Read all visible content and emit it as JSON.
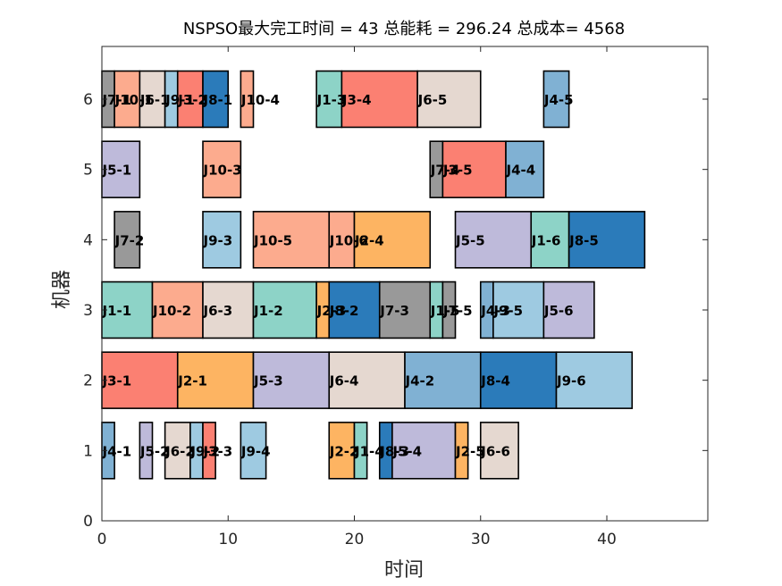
{
  "chart_data": {
    "type": "gantt",
    "title": "NSPSO最大完工时间 = 43 总能耗 = 296.24 总成本= 4568",
    "xlabel": "时间",
    "ylabel": "机器",
    "xlim": [
      0,
      48
    ],
    "ylim": [
      0,
      6.75
    ],
    "xticks": [
      "0",
      "10",
      "20",
      "30",
      "40"
    ],
    "yticks": [
      "0",
      "1",
      "2",
      "3",
      "4",
      "5",
      "6"
    ],
    "bar_height": 0.8,
    "job_colors": {
      "1": "#8dd3c7",
      "2": "#fdb462",
      "3": "#fb8072",
      "4": "#80b1d3",
      "5": "#bebada",
      "6": "#e5d8d0",
      "7": "#999999",
      "8": "#2b7bba",
      "9": "#9ecae1",
      "10": "#fcab8e"
    },
    "tasks": [
      {
        "machine": 6,
        "job": 7,
        "label": "J7-1",
        "start": 0,
        "end": 1
      },
      {
        "machine": 6,
        "job": 10,
        "label": "J10-1",
        "start": 1,
        "end": 3
      },
      {
        "machine": 6,
        "job": 6,
        "label": "J6-1",
        "start": 3,
        "end": 5
      },
      {
        "machine": 6,
        "job": 9,
        "label": "J9-1",
        "start": 5,
        "end": 6
      },
      {
        "machine": 6,
        "job": 3,
        "label": "J3-2",
        "start": 6,
        "end": 8
      },
      {
        "machine": 6,
        "job": 8,
        "label": "J8-1",
        "start": 8,
        "end": 10
      },
      {
        "machine": 6,
        "job": 10,
        "label": "J10-4",
        "start": 11,
        "end": 12
      },
      {
        "machine": 6,
        "job": 1,
        "label": "J1-3",
        "start": 17,
        "end": 19
      },
      {
        "machine": 6,
        "job": 3,
        "label": "J3-4",
        "start": 19,
        "end": 25
      },
      {
        "machine": 6,
        "job": 6,
        "label": "J6-5",
        "start": 25,
        "end": 30
      },
      {
        "machine": 6,
        "job": 4,
        "label": "J4-5",
        "start": 35,
        "end": 37
      },
      {
        "machine": 5,
        "job": 5,
        "label": "J5-1",
        "start": 0,
        "end": 3
      },
      {
        "machine": 5,
        "job": 10,
        "label": "J10-3",
        "start": 8,
        "end": 11
      },
      {
        "machine": 5,
        "job": 7,
        "label": "J7-4",
        "start": 26,
        "end": 27
      },
      {
        "machine": 5,
        "job": 3,
        "label": "J3-5",
        "start": 27,
        "end": 32
      },
      {
        "machine": 5,
        "job": 4,
        "label": "J4-4",
        "start": 32,
        "end": 35
      },
      {
        "machine": 4,
        "job": 7,
        "label": "J7-2",
        "start": 1,
        "end": 3
      },
      {
        "machine": 4,
        "job": 9,
        "label": "J9-3",
        "start": 8,
        "end": 11
      },
      {
        "machine": 4,
        "job": 10,
        "label": "J10-5",
        "start": 12,
        "end": 18
      },
      {
        "machine": 4,
        "job": 10,
        "label": "J10-6",
        "start": 18,
        "end": 20
      },
      {
        "machine": 4,
        "job": 2,
        "label": "J2-4",
        "start": 20,
        "end": 26
      },
      {
        "machine": 4,
        "job": 5,
        "label": "J5-5",
        "start": 28,
        "end": 34
      },
      {
        "machine": 4,
        "job": 1,
        "label": "J1-6",
        "start": 34,
        "end": 37
      },
      {
        "machine": 4,
        "job": 8,
        "label": "J8-5",
        "start": 37,
        "end": 43
      },
      {
        "machine": 3,
        "job": 1,
        "label": "J1-1",
        "start": 0,
        "end": 4
      },
      {
        "machine": 3,
        "job": 10,
        "label": "J10-2",
        "start": 4,
        "end": 8
      },
      {
        "machine": 3,
        "job": 6,
        "label": "J6-3",
        "start": 8,
        "end": 12
      },
      {
        "machine": 3,
        "job": 1,
        "label": "J1-2",
        "start": 12,
        "end": 17
      },
      {
        "machine": 3,
        "job": 2,
        "label": "J2-3",
        "start": 17,
        "end": 18
      },
      {
        "machine": 3,
        "job": 8,
        "label": "J8-2",
        "start": 18,
        "end": 22
      },
      {
        "machine": 3,
        "job": 7,
        "label": "J7-3",
        "start": 22,
        "end": 26
      },
      {
        "machine": 3,
        "job": 1,
        "label": "J1-5",
        "start": 26,
        "end": 27
      },
      {
        "machine": 3,
        "job": 7,
        "label": "J7-5",
        "start": 27,
        "end": 28
      },
      {
        "machine": 3,
        "job": 4,
        "label": "J4-3",
        "start": 30,
        "end": 31
      },
      {
        "machine": 3,
        "job": 9,
        "label": "J9-5",
        "start": 31,
        "end": 35
      },
      {
        "machine": 3,
        "job": 5,
        "label": "J5-6",
        "start": 35,
        "end": 39
      },
      {
        "machine": 2,
        "job": 3,
        "label": "J3-1",
        "start": 0,
        "end": 6
      },
      {
        "machine": 2,
        "job": 2,
        "label": "J2-1",
        "start": 6,
        "end": 12
      },
      {
        "machine": 2,
        "job": 5,
        "label": "J5-3",
        "start": 12,
        "end": 18
      },
      {
        "machine": 2,
        "job": 6,
        "label": "J6-4",
        "start": 18,
        "end": 24
      },
      {
        "machine": 2,
        "job": 4,
        "label": "J4-2",
        "start": 24,
        "end": 30
      },
      {
        "machine": 2,
        "job": 8,
        "label": "J8-4",
        "start": 30,
        "end": 36
      },
      {
        "machine": 2,
        "job": 9,
        "label": "J9-6",
        "start": 36,
        "end": 42
      },
      {
        "machine": 1,
        "job": 4,
        "label": "J4-1",
        "start": 0,
        "end": 1
      },
      {
        "machine": 1,
        "job": 5,
        "label": "J5-2",
        "start": 3,
        "end": 4
      },
      {
        "machine": 1,
        "job": 6,
        "label": "J6-2",
        "start": 5,
        "end": 7
      },
      {
        "machine": 1,
        "job": 9,
        "label": "J9-2",
        "start": 7,
        "end": 8
      },
      {
        "machine": 1,
        "job": 3,
        "label": "J3-3",
        "start": 8,
        "end": 9
      },
      {
        "machine": 1,
        "job": 9,
        "label": "J9-4",
        "start": 11,
        "end": 13
      },
      {
        "machine": 1,
        "job": 2,
        "label": "J2-2",
        "start": 18,
        "end": 20
      },
      {
        "machine": 1,
        "job": 1,
        "label": "J1-4",
        "start": 20,
        "end": 21
      },
      {
        "machine": 1,
        "job": 8,
        "label": "J8-3",
        "start": 22,
        "end": 23
      },
      {
        "machine": 1,
        "job": 5,
        "label": "J5-4",
        "start": 23,
        "end": 28
      },
      {
        "machine": 1,
        "job": 2,
        "label": "J2-5",
        "start": 28,
        "end": 29
      },
      {
        "machine": 1,
        "job": 6,
        "label": "J6-6",
        "start": 30,
        "end": 33
      }
    ]
  }
}
